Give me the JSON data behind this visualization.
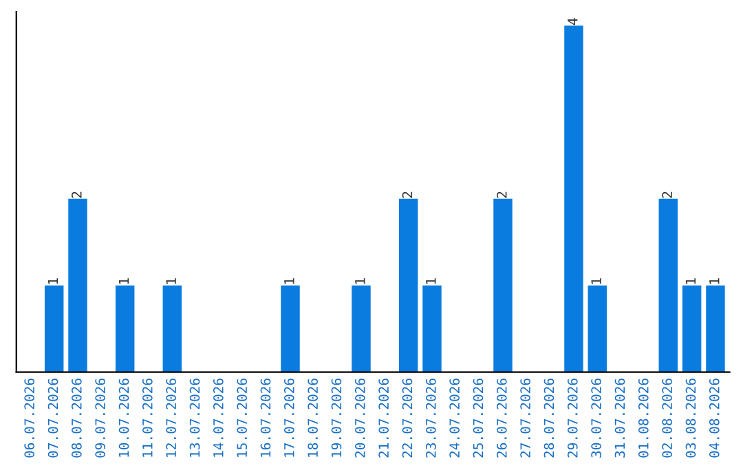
{
  "chart_data": {
    "type": "bar",
    "categories": [
      "06.07.2026",
      "07.07.2026",
      "08.07.2026",
      "09.07.2026",
      "10.07.2026",
      "11.07.2026",
      "12.07.2026",
      "13.07.2026",
      "14.07.2026",
      "15.07.2026",
      "16.07.2026",
      "17.07.2026",
      "18.07.2026",
      "19.07.2026",
      "20.07.2026",
      "21.07.2026",
      "22.07.2026",
      "23.07.2026",
      "24.07.2026",
      "25.07.2026",
      "26.07.2026",
      "27.07.2026",
      "28.07.2026",
      "29.07.2026",
      "30.07.2026",
      "31.07.2026",
      "01.08.2026",
      "02.08.2026",
      "03.08.2026",
      "04.08.2026"
    ],
    "values": [
      0,
      1,
      2,
      0,
      1,
      0,
      1,
      0,
      0,
      0,
      0,
      1,
      0,
      0,
      1,
      0,
      2,
      1,
      0,
      0,
      2,
      0,
      0,
      4,
      1,
      0,
      0,
      2,
      1,
      1
    ],
    "value_labels": [
      null,
      "1",
      "2",
      null,
      "1",
      null,
      "1",
      null,
      null,
      null,
      null,
      "1",
      null,
      null,
      "1",
      null,
      "2",
      "1",
      null,
      null,
      "2",
      null,
      null,
      "4",
      "1",
      null,
      null,
      "2",
      "1",
      "1"
    ],
    "color": "#0a7ce0",
    "tick_labels": "x",
    "grid": false
  }
}
